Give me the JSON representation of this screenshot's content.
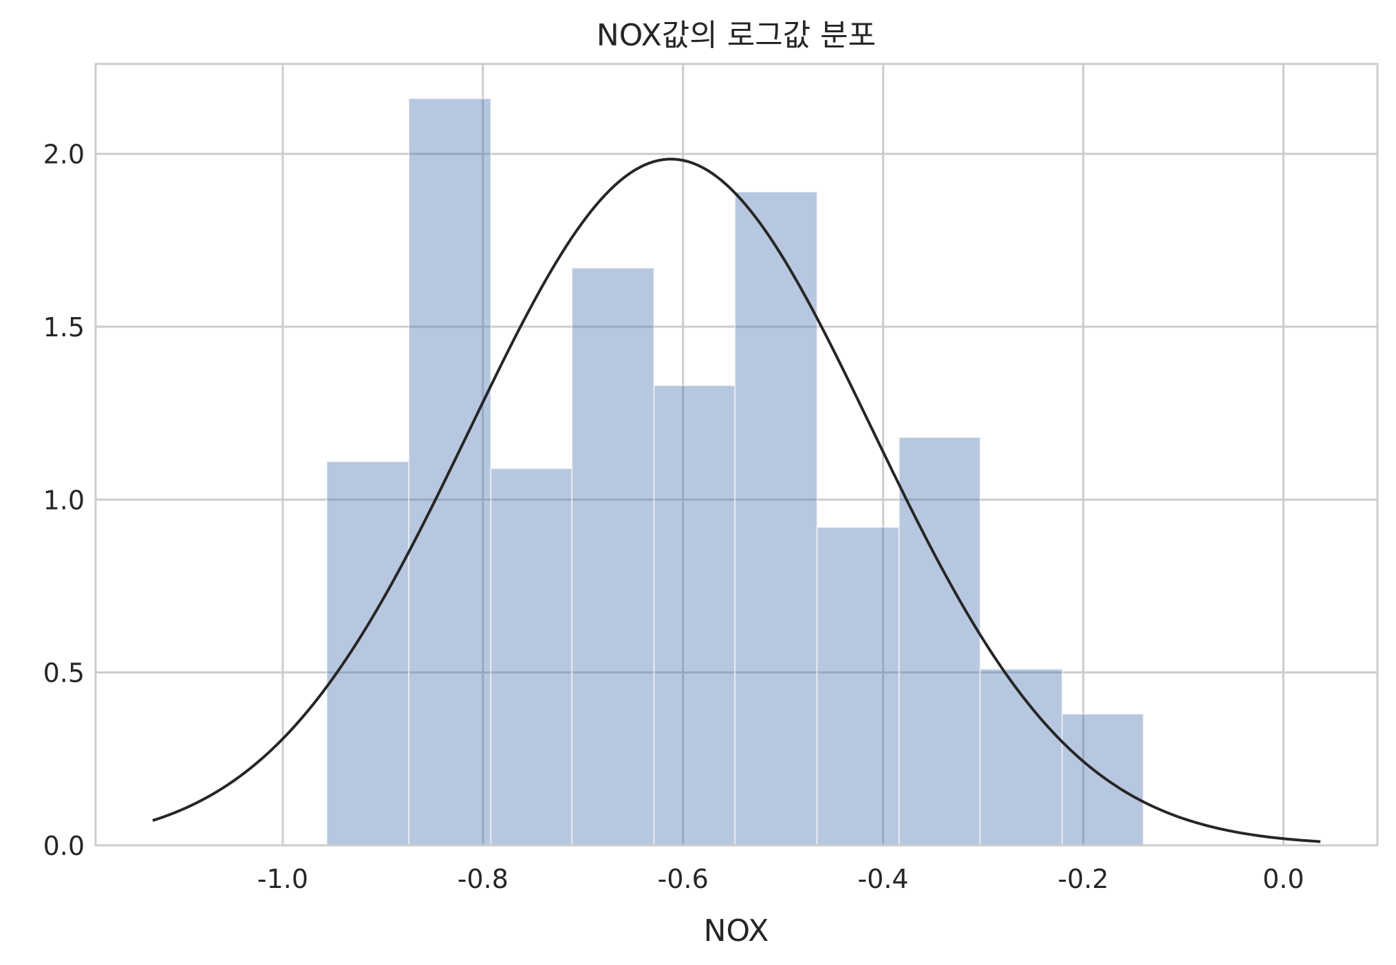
{
  "chart_data": {
    "type": "bar",
    "title": "NOX값의 로그값 분포",
    "xlabel": "NOX",
    "ylabel": "",
    "xlim": [
      -1.187,
      0.094
    ],
    "ylim": [
      0,
      2.26
    ],
    "grid": true,
    "x_ticks": [
      "-1.0",
      "-0.8",
      "-0.6",
      "-0.4",
      "-0.2",
      "0.0"
    ],
    "x_tick_values": [
      -1.0,
      -0.8,
      -0.6,
      -0.4,
      -0.2,
      0.0
    ],
    "y_ticks": [
      "0.0",
      "0.5",
      "1.0",
      "1.5",
      "2.0"
    ],
    "y_tick_values": [
      0.0,
      0.5,
      1.0,
      1.5,
      2.0
    ],
    "histogram": {
      "bin_edges": [
        -0.956,
        -0.874,
        -0.792,
        -0.711,
        -0.629,
        -0.548,
        -0.466,
        -0.384,
        -0.303,
        -0.221,
        -0.14
      ],
      "density": [
        1.11,
        2.16,
        1.09,
        1.67,
        1.33,
        1.89,
        0.92,
        1.18,
        0.51,
        0.38
      ],
      "color": "#4c72b0"
    },
    "fit_curve": {
      "type": "normal",
      "mean": -0.612,
      "std": 0.201,
      "x_range": [
        -1.13,
        0.037
      ],
      "color": "#262626"
    }
  }
}
